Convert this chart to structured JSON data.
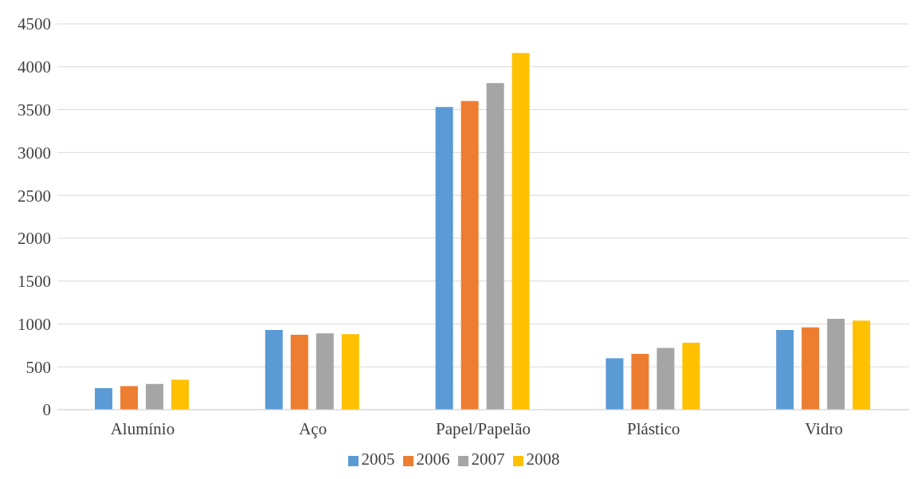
{
  "chart_data": {
    "type": "bar",
    "categories": [
      "Alumínio",
      "Aço",
      "Papel/Papelão",
      "Plástico",
      "Vidro"
    ],
    "series": [
      {
        "name": "2005",
        "color": "#5b9bd5",
        "values": [
          250,
          930,
          3530,
          600,
          930
        ]
      },
      {
        "name": "2006",
        "color": "#ed7d31",
        "values": [
          275,
          875,
          3600,
          650,
          960
        ]
      },
      {
        "name": "2007",
        "color": "#a5a5a5",
        "values": [
          300,
          890,
          3810,
          720,
          1060
        ]
      },
      {
        "name": "2008",
        "color": "#ffc000",
        "values": [
          350,
          880,
          4160,
          780,
          1040
        ]
      }
    ],
    "ylim": [
      0,
      4500
    ],
    "yticks": [
      0,
      500,
      1000,
      1500,
      2000,
      2500,
      3000,
      3500,
      4000,
      4500
    ],
    "grid": "y",
    "legend": "bottom"
  }
}
